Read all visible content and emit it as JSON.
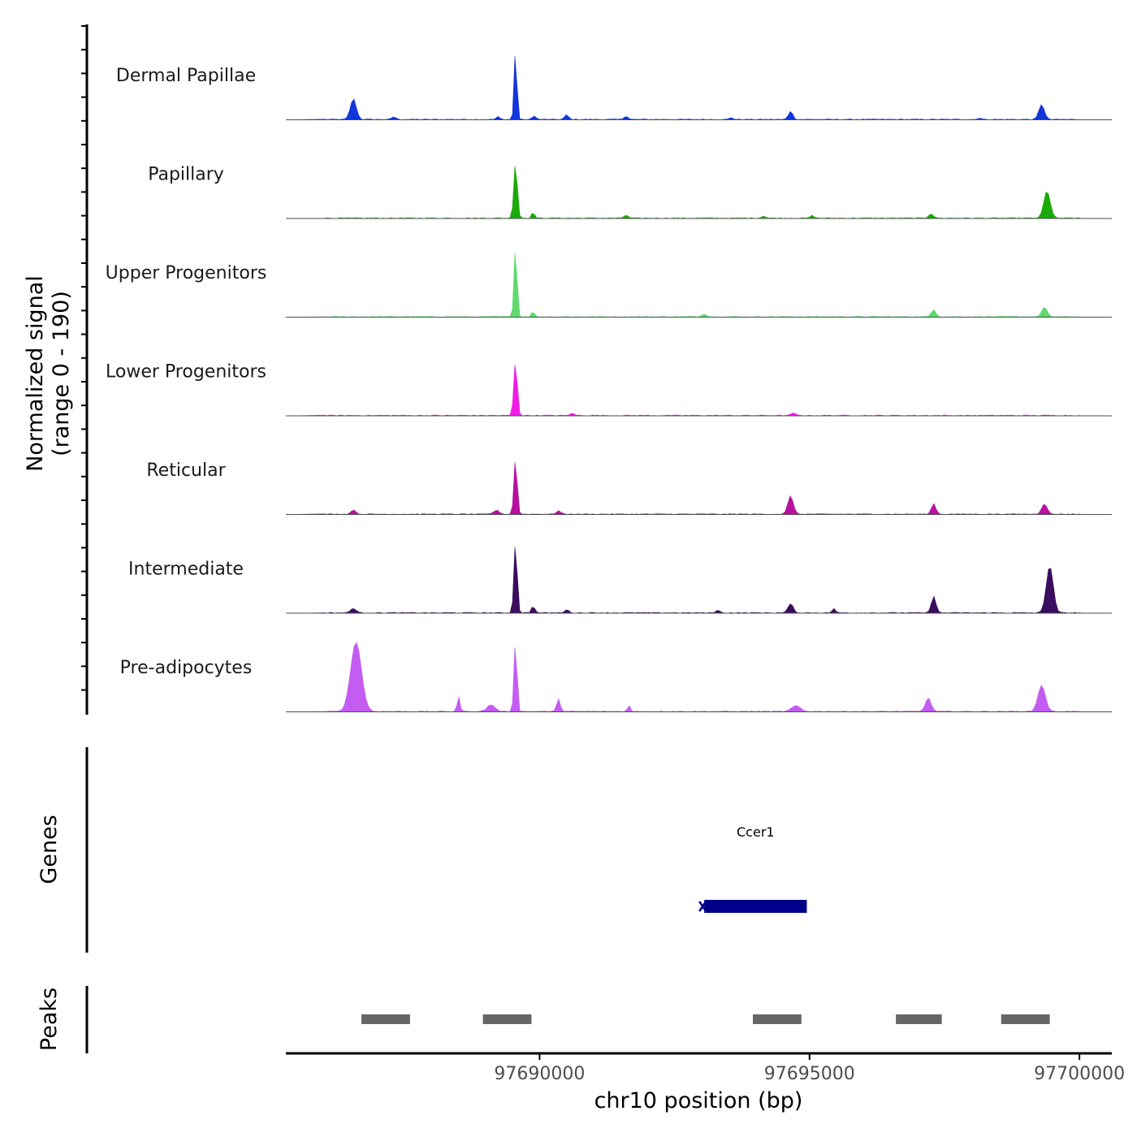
{
  "chart_data": {
    "type": "area",
    "title": "",
    "ylabel_line1": "Normalized signal",
    "ylabel_line2": "(range 0 - 190)",
    "ylim": [
      0,
      190
    ],
    "xlabel": "chr10 position (bp)",
    "xlim": [
      97685300,
      97700600
    ],
    "xticks": [
      {
        "value": 97690000,
        "label": "97690000"
      },
      {
        "value": 97695000,
        "label": "97695000"
      },
      {
        "value": 97700000,
        "label": "97700000"
      }
    ],
    "series": [
      {
        "name": "Dermal Papillae",
        "color": "#1236D9",
        "peaks": [
          {
            "pos": 97686550,
            "height": 55,
            "width": 120
          },
          {
            "pos": 97687300,
            "height": 7,
            "width": 80
          },
          {
            "pos": 97689230,
            "height": 7,
            "width": 70
          },
          {
            "pos": 97689555,
            "height": 190,
            "width": 55
          },
          {
            "pos": 97689900,
            "height": 10,
            "width": 70
          },
          {
            "pos": 97690500,
            "height": 12,
            "width": 80
          },
          {
            "pos": 97691600,
            "height": 9,
            "width": 80
          },
          {
            "pos": 97693550,
            "height": 5,
            "width": 70
          },
          {
            "pos": 97694650,
            "height": 22,
            "width": 90
          },
          {
            "pos": 97698150,
            "height": 4,
            "width": 70
          },
          {
            "pos": 97699300,
            "height": 40,
            "width": 110
          }
        ]
      },
      {
        "name": "Papillary",
        "color": "#1AAA0A",
        "peaks": [
          {
            "pos": 97689555,
            "height": 150,
            "width": 70
          },
          {
            "pos": 97689880,
            "height": 16,
            "width": 60
          },
          {
            "pos": 97691600,
            "height": 8,
            "width": 80
          },
          {
            "pos": 97694150,
            "height": 6,
            "width": 80
          },
          {
            "pos": 97695050,
            "height": 7,
            "width": 80
          },
          {
            "pos": 97697250,
            "height": 12,
            "width": 90
          },
          {
            "pos": 97699400,
            "height": 72,
            "width": 130
          }
        ]
      },
      {
        "name": "Upper Progenitors",
        "color": "#5EDA6E",
        "peaks": [
          {
            "pos": 97689555,
            "height": 190,
            "width": 60
          },
          {
            "pos": 97689880,
            "height": 14,
            "width": 60
          },
          {
            "pos": 97693050,
            "height": 8,
            "width": 90
          },
          {
            "pos": 97697300,
            "height": 20,
            "width": 90
          },
          {
            "pos": 97699350,
            "height": 25,
            "width": 110
          }
        ]
      },
      {
        "name": "Lower Progenitors",
        "color": "#F21BE8",
        "peaks": [
          {
            "pos": 97689555,
            "height": 145,
            "width": 70
          },
          {
            "pos": 97690600,
            "height": 6,
            "width": 80
          },
          {
            "pos": 97694700,
            "height": 7,
            "width": 80
          }
        ]
      },
      {
        "name": "Reticular",
        "color": "#B8109F",
        "peaks": [
          {
            "pos": 97686550,
            "height": 12,
            "width": 90
          },
          {
            "pos": 97689200,
            "height": 10,
            "width": 120
          },
          {
            "pos": 97689555,
            "height": 150,
            "width": 65
          },
          {
            "pos": 97690350,
            "height": 9,
            "width": 90
          },
          {
            "pos": 97694650,
            "height": 48,
            "width": 110
          },
          {
            "pos": 97697300,
            "height": 28,
            "width": 90
          },
          {
            "pos": 97699350,
            "height": 28,
            "width": 110
          }
        ]
      },
      {
        "name": "Intermediate",
        "color": "#3A0D5E",
        "peaks": [
          {
            "pos": 97686550,
            "height": 12,
            "width": 110
          },
          {
            "pos": 97689555,
            "height": 190,
            "width": 65
          },
          {
            "pos": 97689880,
            "height": 18,
            "width": 70
          },
          {
            "pos": 97690500,
            "height": 8,
            "width": 90
          },
          {
            "pos": 97693300,
            "height": 6,
            "width": 90
          },
          {
            "pos": 97694650,
            "height": 25,
            "width": 100
          },
          {
            "pos": 97695450,
            "height": 12,
            "width": 60
          },
          {
            "pos": 97697300,
            "height": 45,
            "width": 90
          },
          {
            "pos": 97699450,
            "height": 125,
            "width": 140
          }
        ]
      },
      {
        "name": "Pre-adipocytes",
        "color": "#C45CF2",
        "peaks": [
          {
            "pos": 97685900,
            "height": 10,
            "width": 90
          },
          {
            "pos": 97686600,
            "height": 185,
            "width": 220
          },
          {
            "pos": 97688500,
            "height": 38,
            "width": 60
          },
          {
            "pos": 97689100,
            "height": 18,
            "width": 160
          },
          {
            "pos": 97689555,
            "height": 190,
            "width": 60
          },
          {
            "pos": 97690350,
            "height": 35,
            "width": 70
          },
          {
            "pos": 97691650,
            "height": 18,
            "width": 50
          },
          {
            "pos": 97694750,
            "height": 15,
            "width": 180
          },
          {
            "pos": 97697200,
            "height": 35,
            "width": 120
          },
          {
            "pos": 97699300,
            "height": 70,
            "width": 150
          }
        ]
      }
    ],
    "genes": [
      {
        "name": "Ccer1",
        "start": 97693050,
        "end": 97694950,
        "strand": "-",
        "color": "#00008B"
      }
    ],
    "genes_label": "Genes",
    "peaks_label": "Peaks",
    "peak_regions": [
      [
        97686700,
        97687600
      ],
      [
        97688950,
        97689850
      ],
      [
        97693950,
        97694850
      ],
      [
        97696600,
        97697450
      ],
      [
        97698550,
        97699450
      ]
    ]
  }
}
